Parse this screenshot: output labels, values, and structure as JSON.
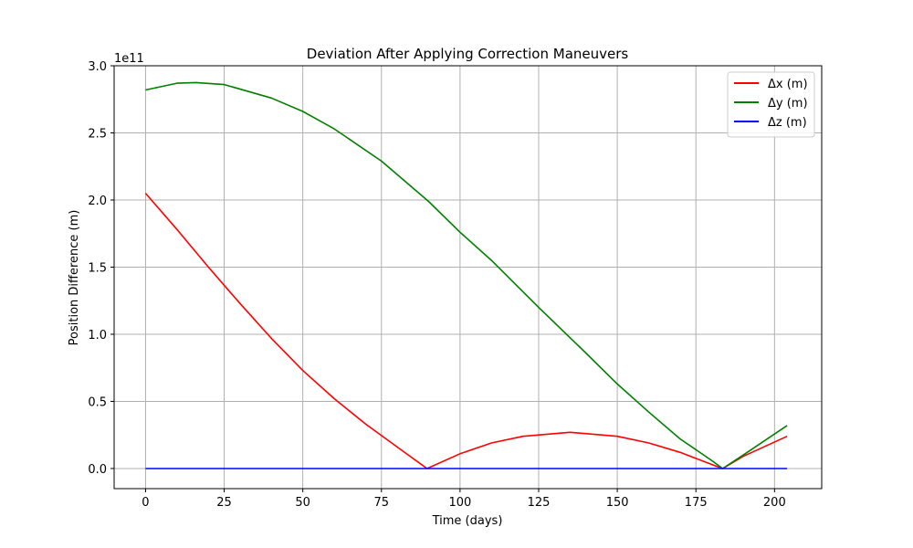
{
  "chart_data": {
    "type": "line",
    "title": "Deviation After Applying Correction Maneuvers",
    "xlabel": "Time (days)",
    "ylabel": "Position Difference (m)",
    "y_offset_label": "1e11",
    "y_scale": 100000000000.0,
    "xlim": [
      -10,
      215
    ],
    "ylim": [
      -0.15,
      3.0
    ],
    "xticks": [
      0,
      25,
      50,
      75,
      100,
      125,
      150,
      175,
      200
    ],
    "yticks": [
      0.0,
      0.5,
      1.0,
      1.5,
      2.0,
      2.5,
      3.0
    ],
    "ytick_labels": [
      "0.0",
      "0.5",
      "1.0",
      "1.5",
      "2.0",
      "2.5",
      "3.0"
    ],
    "grid": true,
    "legend_position": "top-right",
    "series": [
      {
        "name": "Δx (m)",
        "color": "#ff0000",
        "x": [
          0,
          10,
          20,
          30,
          40,
          50,
          60,
          70,
          80,
          89.5,
          100,
          110,
          120,
          135,
          150,
          160,
          170,
          180,
          183.5,
          190,
          204
        ],
        "y": [
          2.05,
          1.78,
          1.5,
          1.23,
          0.97,
          0.73,
          0.52,
          0.33,
          0.16,
          0.0,
          0.11,
          0.19,
          0.24,
          0.27,
          0.24,
          0.19,
          0.12,
          0.03,
          0.0,
          0.09,
          0.24
        ]
      },
      {
        "name": "Δy (m)",
        "color": "#008000",
        "x": [
          0,
          10,
          16,
          25,
          40,
          50,
          60,
          75,
          90,
          100,
          110,
          125,
          140,
          150,
          160,
          170,
          180,
          183.5,
          190,
          204
        ],
        "y": [
          2.82,
          2.87,
          2.875,
          2.86,
          2.76,
          2.66,
          2.53,
          2.29,
          1.99,
          1.76,
          1.55,
          1.2,
          0.86,
          0.63,
          0.42,
          0.22,
          0.06,
          0.0,
          0.1,
          0.32
        ]
      },
      {
        "name": "Δz (m)",
        "color": "#0000ff",
        "x": [
          0,
          50,
          100,
          150,
          204
        ],
        "y": [
          0.0,
          0.0,
          0.0,
          0.0,
          0.0
        ]
      }
    ]
  }
}
